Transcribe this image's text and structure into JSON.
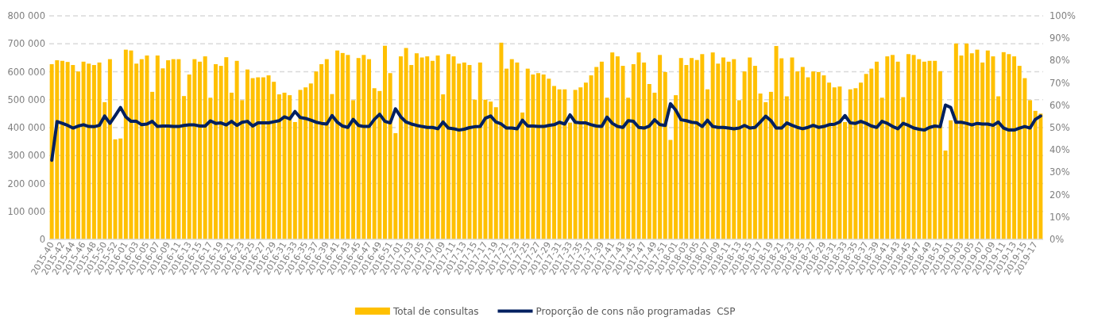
{
  "chart_data": {
    "type": "bar",
    "categories": [
      "2015-40",
      null,
      "2015-42",
      null,
      "2015-44",
      null,
      "2015-46",
      null,
      "2015-48",
      null,
      "2015-50",
      null,
      "2015-52",
      null,
      "2016-01",
      null,
      "2016-03",
      null,
      "2016-05",
      null,
      "2016-07",
      null,
      "2016-09",
      null,
      "2016-11",
      null,
      "2016-13",
      null,
      "2016-15",
      null,
      "2016-17",
      null,
      "2016-19",
      null,
      "2016-21",
      null,
      "2016-23",
      null,
      "2016-25",
      null,
      "2016-27",
      null,
      "2016-29",
      null,
      "2016-31",
      null,
      "2016-33",
      null,
      "2016-35",
      null,
      "2016-37",
      null,
      "2016-39",
      null,
      "2016-41",
      null,
      "2016-43",
      null,
      "2016-45",
      null,
      "2016-47",
      null,
      "2016-49",
      null,
      "2016-51",
      null,
      "2017-01",
      null,
      "2017-03",
      null,
      "2017-05",
      null,
      "2017-07",
      null,
      "2017-09",
      null,
      "2017-11",
      null,
      "2017-13",
      null,
      "2017-15",
      null,
      "2017-17",
      null,
      "2017-19",
      null,
      "2017-21",
      null,
      "2017-23",
      null,
      "2017-25",
      null,
      "2017-27",
      null,
      "2017-29",
      null,
      "2017-31",
      null,
      "2017-33",
      null,
      "2017-35",
      null,
      "2017-37",
      null,
      "2017-39",
      null,
      "2017-41",
      null,
      "2017-43",
      null,
      "2017-45",
      null,
      "2017-47",
      null,
      "2017-49",
      null,
      "2017-51",
      null,
      "2018-01",
      null,
      "2018-03",
      null,
      "2018-05",
      null,
      "2018-07",
      null,
      "2018-09",
      null,
      "2018-11",
      null,
      "2018-13",
      null,
      "2018-15",
      null,
      "2018-17",
      null,
      "2018-19",
      null,
      "2018-21",
      null,
      "2018-23",
      null,
      "2018-25",
      null,
      "2018-27",
      null,
      "2018-29",
      null,
      "2018-31",
      null,
      "2018-33",
      null,
      "2018-35",
      null,
      "2018-37",
      null,
      "2018-39",
      null,
      "2018-41",
      null,
      "2018-43",
      null,
      "2018-45",
      null,
      "2018-47",
      null,
      "2018-49",
      null,
      "2018-51",
      null,
      "2019-01",
      null,
      "2019-03",
      null,
      "2019-05",
      null,
      "2019-07",
      null,
      "2019-09",
      null,
      "2019-11",
      null,
      "2019-13",
      null,
      "2019-15",
      null,
      "2019-17",
      null
    ],
    "series": [
      {
        "name": "Total de consultas",
        "color": "#ffc000",
        "values": [
          627000,
          641000,
          639000,
          635000,
          624000,
          601000,
          636000,
          629000,
          624000,
          633000,
          491000,
          645000,
          358000,
          361000,
          679000,
          676000,
          629000,
          645000,
          658000,
          528000,
          658000,
          612000,
          641000,
          645000,
          645000,
          513000,
          590000,
          645000,
          636000,
          655000,
          507000,
          627000,
          621000,
          652000,
          525000,
          639000,
          498000,
          608000,
          577000,
          580000,
          580000,
          587000,
          564000,
          519000,
          525000,
          516000,
          420000,
          535000,
          544000,
          558000,
          601000,
          627000,
          645000,
          520000,
          676000,
          667000,
          660000,
          498000,
          649000,
          660000,
          645000,
          541000,
          531000,
          693000,
          595000,
          380000,
          655000,
          685000,
          624000,
          666000,
          651000,
          655000,
          639000,
          658000,
          519000,
          663000,
          655000,
          629000,
          633000,
          624000,
          500000,
          633000,
          500000,
          493000,
          473000,
          704000,
          611000,
          645000,
          633000,
          454000,
          611000,
          590000,
          595000,
          590000,
          575000,
          549000,
          537000,
          537000,
          418000,
          535000,
          544000,
          561000,
          587000,
          617000,
          636000,
          507000,
          669000,
          655000,
          621000,
          507000,
          627000,
          669000,
          633000,
          556000,
          525000,
          660000,
          599000,
          356000,
          516000,
          649000,
          624000,
          649000,
          642000,
          663000,
          537000,
          669000,
          629000,
          651000,
          636000,
          645000,
          498000,
          601000,
          651000,
          621000,
          522000,
          491000,
          528000,
          692000,
          648000,
          512000,
          651000,
          601000,
          617000,
          580000,
          601000,
          599000,
          587000,
          561000,
          544000,
          547000,
          420000,
          537000,
          541000,
          561000,
          592000,
          611000,
          636000,
          507000,
          655000,
          660000,
          636000,
          509000,
          663000,
          660000,
          645000,
          636000,
          639000,
          639000,
          602000,
          318000,
          426000,
          701000,
          658000,
          701000,
          666000,
          679000,
          633000,
          676000,
          655000,
          512000,
          670000,
          663000,
          655000,
          621000,
          577000,
          498000,
          460000,
          450000
        ]
      },
      {
        "name": "Proporção de cons não programadas  CSP",
        "type": "line",
        "axis": "y2",
        "color": "#002060",
        "values": [
          35.4,
          52.7,
          51.9,
          51,
          49.8,
          50.7,
          51.3,
          50.5,
          50.4,
          51,
          55.2,
          51.9,
          55.4,
          59,
          54.8,
          52.8,
          52.8,
          51.3,
          51.6,
          52.8,
          50.5,
          50.7,
          50.7,
          50.5,
          50.5,
          51,
          51.2,
          51.2,
          50.7,
          50.7,
          53,
          51.9,
          52.1,
          51.2,
          52.8,
          51,
          52.4,
          52.8,
          50.7,
          52.1,
          52.1,
          52.1,
          52.6,
          53.1,
          54.8,
          53.9,
          57.2,
          54.5,
          54.1,
          53.3,
          52.4,
          51.9,
          51.6,
          55.4,
          52.4,
          50.7,
          50.1,
          53.7,
          51,
          50.5,
          50.5,
          53.7,
          56,
          52.8,
          52.1,
          58.4,
          54.8,
          52.5,
          51.6,
          51,
          50.5,
          50.1,
          50.1,
          49.5,
          52.5,
          49.8,
          49.5,
          48.9,
          49.3,
          50,
          50.4,
          50.5,
          54.2,
          55.2,
          52.5,
          51.6,
          49.8,
          49.8,
          49.5,
          53.3,
          50.7,
          50.7,
          50.5,
          50.5,
          51,
          51.3,
          52.4,
          51.6,
          55.7,
          52.4,
          52.1,
          52.1,
          51.3,
          50.7,
          50.5,
          54.7,
          51.9,
          50.5,
          50.1,
          53.1,
          52.8,
          50.1,
          49.8,
          50.7,
          53.5,
          51.3,
          51,
          60.7,
          57.8,
          53.5,
          53.1,
          52.4,
          52.1,
          50.5,
          53.3,
          50.5,
          50.1,
          50.1,
          49.8,
          49.5,
          49.8,
          51,
          49.8,
          50.1,
          52.5,
          55.1,
          53.1,
          49.8,
          49.8,
          52.1,
          51,
          50.1,
          49.5,
          50.1,
          51,
          50.1,
          50.5,
          51.3,
          51.5,
          52.5,
          55.4,
          52.1,
          51.9,
          52.8,
          51.9,
          50.7,
          50.1,
          52.8,
          51.9,
          50.5,
          49.5,
          51.9,
          51,
          49.8,
          49.3,
          48.9,
          50.1,
          50.7,
          50.4,
          60.1,
          59,
          52.4,
          52.4,
          51.9,
          51.2,
          51.9,
          51.6,
          51.6,
          51,
          52.5,
          49.8,
          48.9,
          48.9,
          49.8,
          50.5,
          49.8,
          53.7,
          55.2
        ]
      }
    ],
    "ylim": [
      0,
      800000
    ],
    "yticks": [
      {
        "value": 0,
        "label": "0"
      },
      {
        "value": 100000,
        "label": "100 000"
      },
      {
        "value": 200000,
        "label": "200 000"
      },
      {
        "value": 300000,
        "label": "300 000"
      },
      {
        "value": 400000,
        "label": "400 000"
      },
      {
        "value": 500000,
        "label": "500 000"
      },
      {
        "value": 600000,
        "label": "600 000"
      },
      {
        "value": 700000,
        "label": "700 000"
      },
      {
        "value": 800000,
        "label": "800 000"
      }
    ],
    "y2lim": [
      0,
      100
    ],
    "y2ticks": [
      {
        "value": 0,
        "label": "0%"
      },
      {
        "value": 10,
        "label": "10%"
      },
      {
        "value": 20,
        "label": "20%"
      },
      {
        "value": 30,
        "label": "30%"
      },
      {
        "value": 40,
        "label": "40%"
      },
      {
        "value": 50,
        "label": "50%"
      },
      {
        "value": 60,
        "label": "60%"
      },
      {
        "value": 70,
        "label": "70%"
      },
      {
        "value": 80,
        "label": "80%"
      },
      {
        "value": 90,
        "label": "90%"
      },
      {
        "value": 100,
        "label": "100%"
      }
    ],
    "grid": "y",
    "legend": "bottom"
  }
}
